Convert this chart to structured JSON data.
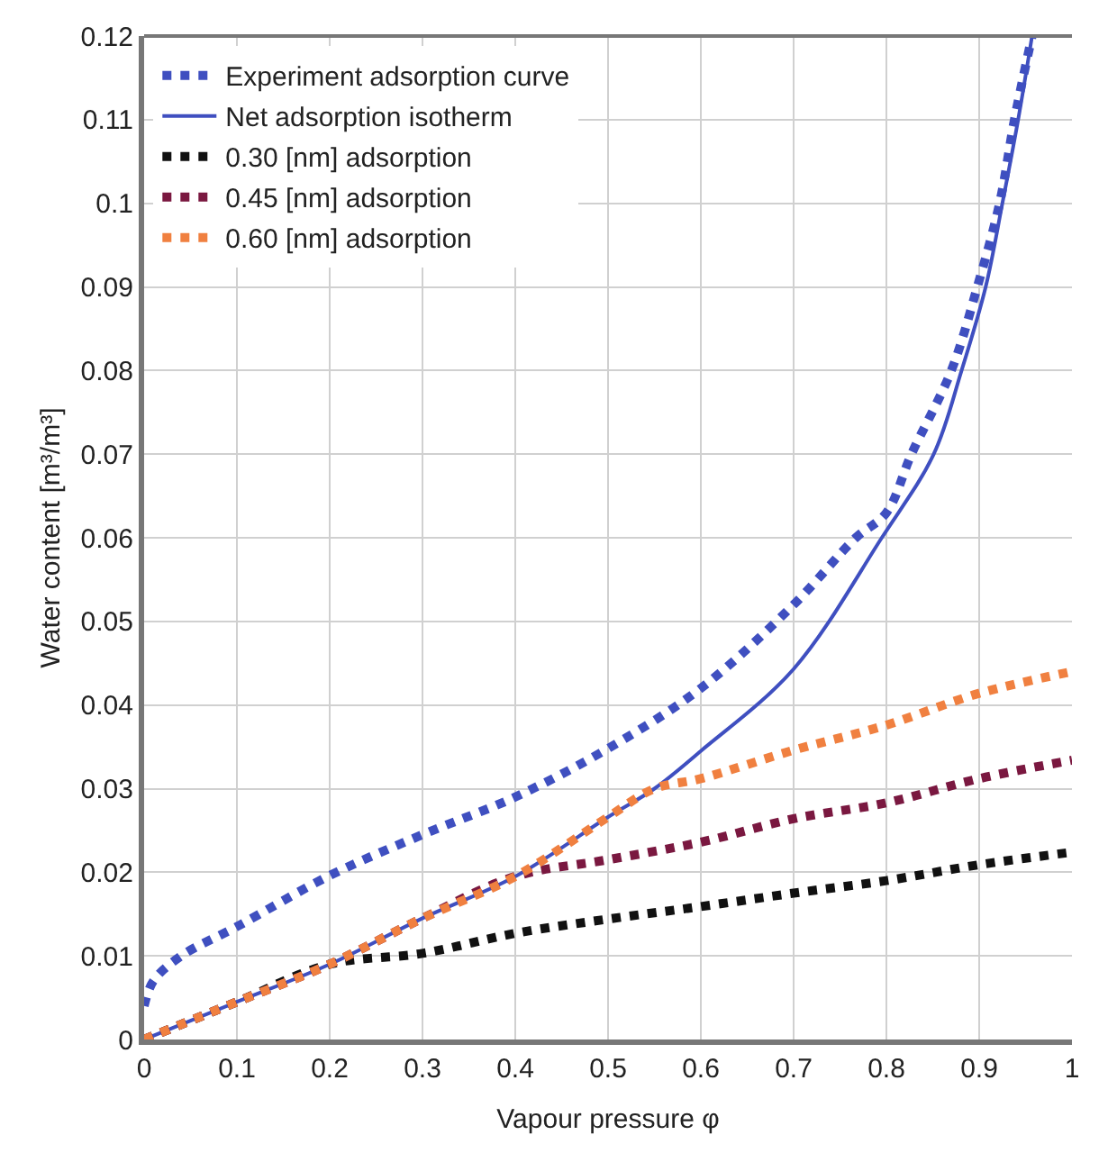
{
  "chart_data": {
    "type": "line",
    "xlabel": "Vapour pressure φ",
    "ylabel": "Water content [m³/m³]",
    "xlim": [
      0,
      1
    ],
    "xticks": [
      0,
      0.1,
      0.2,
      0.3,
      0.4,
      0.5,
      0.6,
      0.7,
      0.8,
      0.9,
      1
    ],
    "ylim": [
      0,
      0.12
    ],
    "yticks": [
      0,
      0.01,
      0.02,
      0.03,
      0.04,
      0.05,
      0.06,
      0.07,
      0.08,
      0.09,
      0.1,
      0.11,
      0.12
    ],
    "grid": true,
    "legend": "top left",
    "marker": "none",
    "series": [
      {
        "name": "Experiment adsorption curve",
        "color": "#3f4fc0",
        "line_style": "dotted",
        "x": [
          0,
          0.01,
          0.04,
          0.1,
          0.2,
          0.3,
          0.4,
          0.5,
          0.6,
          0.7,
          0.767,
          0.8,
          0.827,
          0.87,
          0.898,
          0.922,
          0.938,
          0.957
        ],
        "values": [
          0.004,
          0.007,
          0.01,
          0.0135,
          0.0196,
          0.0245,
          0.029,
          0.0348,
          0.042,
          0.052,
          0.06,
          0.063,
          0.07,
          0.08,
          0.09,
          0.1,
          0.11,
          0.12
        ]
      },
      {
        "name": "Net adsorption isotherm",
        "color": "#3f4fc0",
        "line_style": "solid",
        "x": [
          0,
          0.1,
          0.2,
          0.3,
          0.4,
          0.5,
          0.55,
          0.6,
          0.7,
          0.795,
          0.851,
          0.881,
          0.907,
          0.925,
          0.942,
          0.957
        ],
        "values": [
          0,
          0.0045,
          0.009,
          0.0145,
          0.0195,
          0.0266,
          0.03,
          0.0345,
          0.0443,
          0.06,
          0.07,
          0.08,
          0.09,
          0.1,
          0.11,
          0.12
        ]
      },
      {
        "name": "0.30 [nm] adsorption",
        "color": "#111111",
        "line_style": "dotted",
        "x": [
          0,
          0.1,
          0.2,
          0.3,
          0.4,
          0.5,
          0.6,
          0.7,
          0.8,
          0.9,
          1
        ],
        "values": [
          0,
          0.0045,
          0.009,
          0.0103,
          0.0127,
          0.0144,
          0.0159,
          0.0175,
          0.019,
          0.0209,
          0.0224
        ]
      },
      {
        "name": "0.45 [nm] adsorption",
        "color": "#7a1840",
        "line_style": "dotted",
        "x": [
          0,
          0.1,
          0.2,
          0.3,
          0.4,
          0.5,
          0.6,
          0.7,
          0.8,
          0.9,
          1
        ],
        "values": [
          0,
          0.0045,
          0.009,
          0.0145,
          0.0195,
          0.0215,
          0.0236,
          0.0264,
          0.0283,
          0.0312,
          0.0334
        ]
      },
      {
        "name": "0.60 [nm] adsorption",
        "color": "#f08040",
        "line_style": "dotted",
        "x": [
          0,
          0.1,
          0.2,
          0.3,
          0.4,
          0.5,
          0.55,
          0.6,
          0.7,
          0.8,
          0.9,
          1
        ],
        "values": [
          0,
          0.0045,
          0.009,
          0.0145,
          0.0195,
          0.0266,
          0.03,
          0.0312,
          0.0346,
          0.0376,
          0.0414,
          0.044
        ]
      }
    ]
  }
}
